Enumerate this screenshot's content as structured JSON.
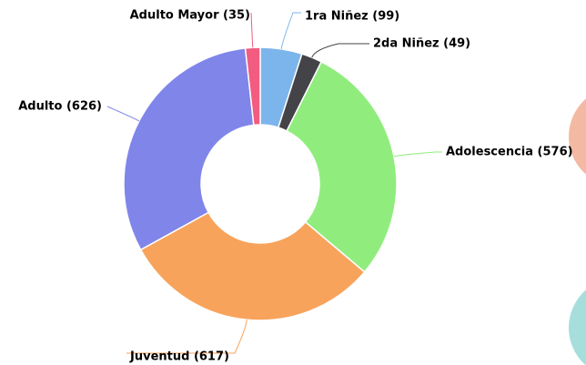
{
  "chart_data": {
    "type": "pie",
    "values": [
      99,
      49,
      576,
      617,
      626,
      35
    ],
    "value_labels": [
      "1ra Niñez (99)",
      "2da Niñez (49)",
      "Adolescencia (576)",
      "Juventud (617)",
      "Adulto (626)",
      "Adulto Mayor (35)"
    ],
    "colors": [
      "#7cb5ec",
      "#434348",
      "#90ed7d",
      "#f7a35c",
      "#8085e9",
      "#f15c80"
    ]
  }
}
